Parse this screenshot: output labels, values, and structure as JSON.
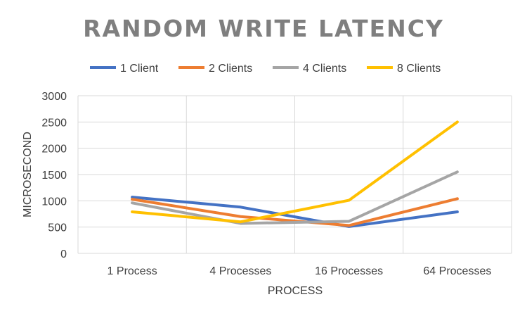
{
  "chart_data": {
    "type": "line",
    "title": "RANDOM WRITE LATENCY",
    "xlabel": "PROCESS",
    "ylabel": "MICROSECOND",
    "categories": [
      "1 Process",
      "4 Processes",
      "16 Processes",
      "64 Processes"
    ],
    "ylim": [
      0,
      3000
    ],
    "yticks": [
      0,
      500,
      1000,
      1500,
      2000,
      2500,
      3000
    ],
    "grid": true,
    "legend_position": "top",
    "series": [
      {
        "name": "1 Client",
        "color": "#4472c4",
        "values": [
          1070,
          880,
          510,
          790
        ]
      },
      {
        "name": "2 Clients",
        "color": "#ed7d31",
        "values": [
          1030,
          700,
          530,
          1040
        ]
      },
      {
        "name": "4 Clients",
        "color": "#a5a5a5",
        "values": [
          960,
          570,
          610,
          1550
        ]
      },
      {
        "name": "8 Clients",
        "color": "#ffc000",
        "values": [
          790,
          600,
          1010,
          2500
        ]
      }
    ]
  }
}
